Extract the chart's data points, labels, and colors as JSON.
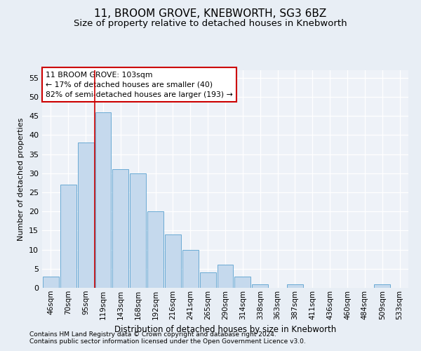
{
  "title1": "11, BROOM GROVE, KNEBWORTH, SG3 6BZ",
  "title2": "Size of property relative to detached houses in Knebworth",
  "xlabel": "Distribution of detached houses by size in Knebworth",
  "ylabel": "Number of detached properties",
  "categories": [
    "46sqm",
    "70sqm",
    "95sqm",
    "119sqm",
    "143sqm",
    "168sqm",
    "192sqm",
    "216sqm",
    "241sqm",
    "265sqm",
    "290sqm",
    "314sqm",
    "338sqm",
    "363sqm",
    "387sqm",
    "411sqm",
    "436sqm",
    "460sqm",
    "484sqm",
    "509sqm",
    "533sqm"
  ],
  "values": [
    3,
    27,
    38,
    46,
    31,
    30,
    20,
    14,
    10,
    4,
    6,
    3,
    1,
    0,
    1,
    0,
    0,
    0,
    0,
    1,
    0
  ],
  "bar_color": "#c5d9ed",
  "bar_edge_color": "#6aaad4",
  "property_line_x": 2.5,
  "annotation_title": "11 BROOM GROVE: 103sqm",
  "annotation_line1": "← 17% of detached houses are smaller (40)",
  "annotation_line2": "82% of semi-detached houses are larger (193) →",
  "annotation_box_color": "#ffffff",
  "annotation_box_edge": "#cc0000",
  "vline_color": "#cc0000",
  "ylim": [
    0,
    57
  ],
  "yticks": [
    0,
    5,
    10,
    15,
    20,
    25,
    30,
    35,
    40,
    45,
    50,
    55
  ],
  "footer1": "Contains HM Land Registry data © Crown copyright and database right 2024.",
  "footer2": "Contains public sector information licensed under the Open Government Licence v3.0.",
  "bg_color": "#e8eef5",
  "plot_bg_color": "#eef2f8"
}
